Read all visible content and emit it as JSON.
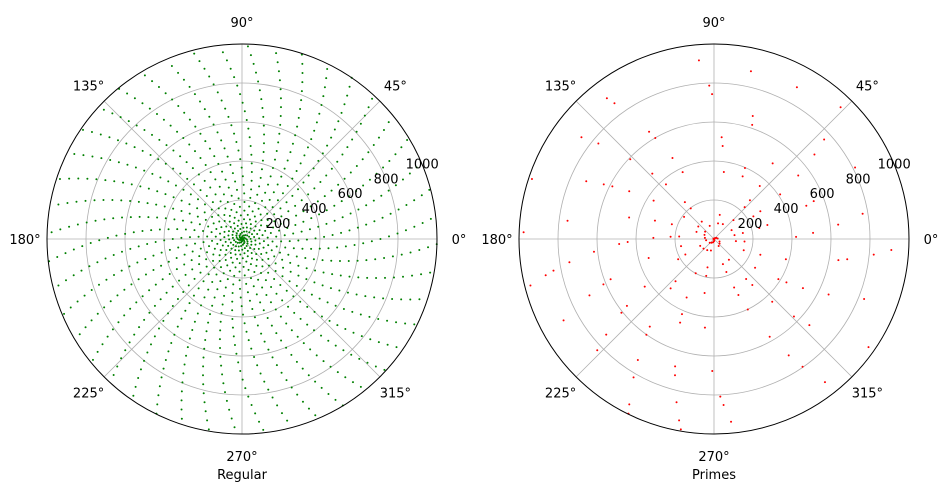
{
  "chart_data": [
    {
      "type": "scatter",
      "projection": "polar",
      "xlabel": "Regular",
      "angle_unit": "degrees",
      "theta_tick_labels": [
        "0°",
        "45°",
        "90°",
        "135°",
        "180°",
        "225°",
        "270°",
        "315°"
      ],
      "r_tick_labels": [
        "200",
        "400",
        "600",
        "800",
        "1000"
      ],
      "rlim": [
        0,
        1000
      ],
      "grid": true,
      "marker_color": "#008000",
      "series": [
        {
          "points": "all integers n = 1 .. 1000 plotted at (theta = n radians, r = n)",
          "n_min": 1,
          "n_max": 1000
        }
      ]
    },
    {
      "type": "scatter",
      "projection": "polar",
      "xlabel": "Primes",
      "angle_unit": "degrees",
      "theta_tick_labels": [
        "0°",
        "45°",
        "90°",
        "135°",
        "180°",
        "225°",
        "270°",
        "315°"
      ],
      "r_tick_labels": [
        "200",
        "400",
        "600",
        "800",
        "1000"
      ],
      "rlim": [
        0,
        1000
      ],
      "grid": true,
      "marker_color": "#ff0000",
      "series": [
        {
          "points": "prime numbers p <= 1000 plotted at (theta = p radians, r = p)",
          "n_min": 2,
          "n_max": 1000
        }
      ]
    }
  ]
}
